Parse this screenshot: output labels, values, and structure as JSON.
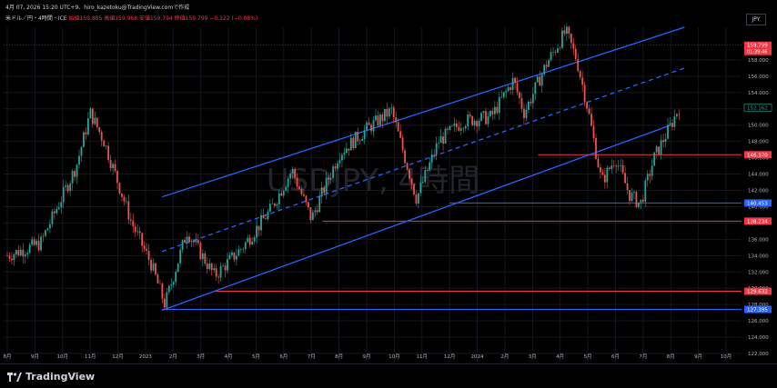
{
  "header": {
    "timestamp_line": "4月 07, 2026 15:20 UTC+9、hiro_kazetoku@TradingView.comで作成",
    "symbol_line": "米ドル／円・4時間・ICE",
    "ohlc": "始値159.885 高値159.968 安値159.794 終値159.799 −0.122 (−0.08%)"
  },
  "currency_label": "JPY",
  "watermark": "USDJPY, 4時間",
  "brand": "TradingView",
  "colors": {
    "background": "#000000",
    "up_candle": "#26a69a",
    "down_candle": "#ef5350",
    "channel_line": "#2962ff",
    "support_red": "#f23645",
    "support_blue": "#2962ff",
    "text": "#d1d4dc"
  },
  "chart_data": {
    "type": "candlestick",
    "x_ticks": [
      "8月",
      "9月",
      "10月",
      "11月",
      "12月",
      "2023",
      "2月",
      "3月",
      "4月",
      "5月",
      "6月",
      "7月",
      "8月",
      "9月",
      "10月",
      "11月",
      "12月",
      "2024",
      "2月",
      "3月",
      "4月",
      "5月",
      "6月",
      "7月",
      "8月",
      "9月",
      "10月"
    ],
    "y_ticks": [
      122,
      124,
      126,
      128,
      130,
      132,
      134,
      136,
      138,
      140,
      142,
      144,
      146,
      148,
      150,
      152,
      154,
      156,
      158
    ],
    "ylim": [
      121,
      162
    ],
    "price_series": [
      {
        "t": 0,
        "p": 134.0
      },
      {
        "t": 1.2,
        "p": 135.5
      },
      {
        "t": 2.5,
        "p": 145.0
      },
      {
        "t": 3.0,
        "p": 151.5
      },
      {
        "t": 3.5,
        "p": 148.0
      },
      {
        "t": 4.5,
        "p": 138.0
      },
      {
        "t": 5.2,
        "p": 133.0
      },
      {
        "t": 5.7,
        "p": 128.0
      },
      {
        "t": 6.5,
        "p": 137.0
      },
      {
        "t": 7.5,
        "p": 131.5
      },
      {
        "t": 8.5,
        "p": 135.0
      },
      {
        "t": 9.5,
        "p": 139.5
      },
      {
        "t": 10.3,
        "p": 144.5
      },
      {
        "t": 11.0,
        "p": 138.5
      },
      {
        "t": 12.0,
        "p": 146.5
      },
      {
        "t": 13.0,
        "p": 149.5
      },
      {
        "t": 13.9,
        "p": 151.8
      },
      {
        "t": 14.8,
        "p": 141.0
      },
      {
        "t": 15.6,
        "p": 148.0
      },
      {
        "t": 16.5,
        "p": 150.5
      },
      {
        "t": 17.5,
        "p": 151.0
      },
      {
        "t": 18.3,
        "p": 155.5
      },
      {
        "t": 18.7,
        "p": 151.5
      },
      {
        "t": 19.5,
        "p": 157.5
      },
      {
        "t": 20.2,
        "p": 161.5
      },
      {
        "t": 20.6,
        "p": 158.0
      },
      {
        "t": 21.0,
        "p": 152.0
      },
      {
        "t": 21.5,
        "p": 143.0
      },
      {
        "t": 22.0,
        "p": 146.0
      },
      {
        "t": 22.5,
        "p": 141.5
      },
      {
        "t": 22.9,
        "p": 140.3
      },
      {
        "t": 23.4,
        "p": 146.0
      },
      {
        "t": 24.0,
        "p": 150.0
      },
      {
        "t": 24.3,
        "p": 152.2
      }
    ],
    "channel_lines": [
      {
        "name": "upper",
        "style": "solid",
        "from": [
          5.6,
          141.2
        ],
        "to": [
          24.5,
          162.0
        ]
      },
      {
        "name": "mid",
        "style": "dashed",
        "from": [
          5.6,
          134.5
        ],
        "to": [
          24.5,
          157.0
        ]
      },
      {
        "name": "lower",
        "style": "solid",
        "from": [
          5.6,
          127.3
        ],
        "to": [
          24.0,
          150.0
        ]
      }
    ],
    "levels": [
      {
        "value": "146.370",
        "y": 146.37,
        "color": "red",
        "from_t": 19.2
      },
      {
        "value": "140.453",
        "y": 140.45,
        "color": "blue",
        "from_t": 16.0
      },
      {
        "value": "138.234",
        "y": 138.23,
        "color": "red",
        "from_t": 11.4
      },
      {
        "value": "129.632",
        "y": 129.63,
        "color": "red",
        "from_t": 7.5
      },
      {
        "value": "127.395",
        "y": 127.4,
        "color": "blue",
        "from_t": 5.6
      }
    ],
    "current_price": {
      "value": "159.799",
      "countdown": "01:39:46",
      "y": 159.8
    },
    "last_marker": {
      "value": "152.162",
      "y": 152.16
    }
  }
}
